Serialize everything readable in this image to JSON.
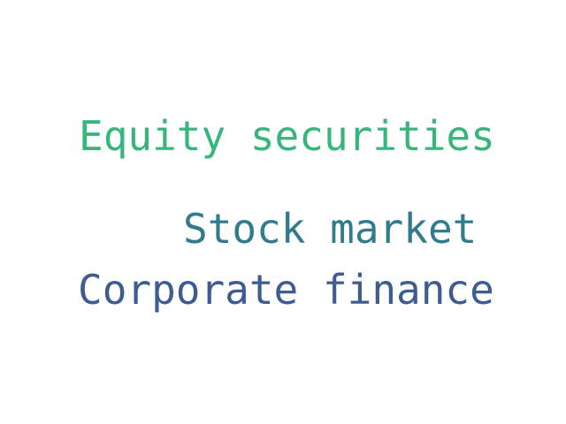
{
  "word_cloud": {
    "words": [
      {
        "text": "Equity securities",
        "color": "#36b67a"
      },
      {
        "text": "Stock market",
        "color": "#317b8c"
      },
      {
        "text": "Corporate finance",
        "color": "#3e5b92"
      }
    ]
  }
}
